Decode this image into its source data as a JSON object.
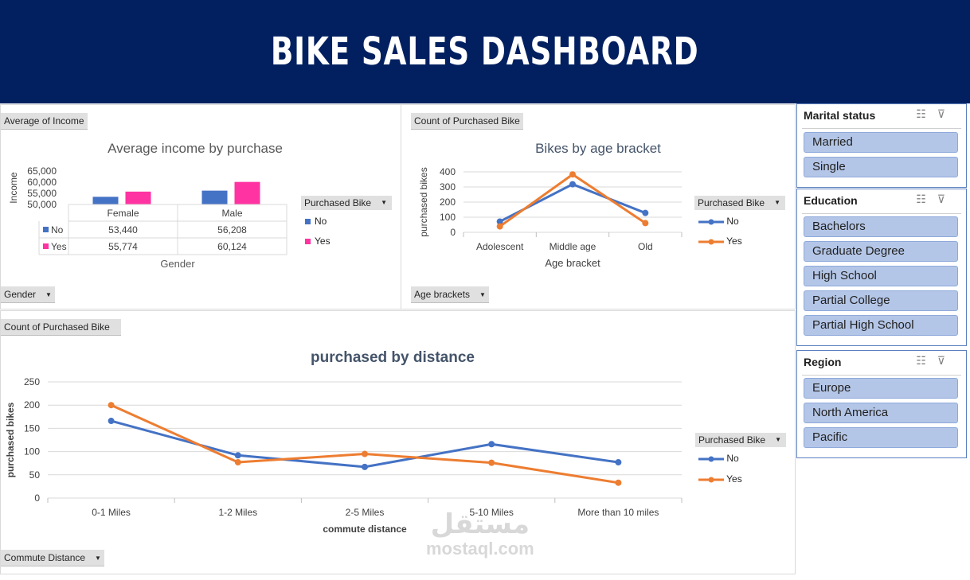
{
  "header": {
    "title": "BIKE SALES DASHBOARD"
  },
  "colors": {
    "banner": "#022060",
    "no": "#4472c4",
    "yes_income": "#ff33a1",
    "yes_line": "#ed7d31"
  },
  "income_panel": {
    "field_value": "Average of Income",
    "field_axis": "Gender",
    "legend_title": "Purchased Bike",
    "legend": [
      "No",
      "Yes"
    ],
    "table": {
      "columns": [
        "Female",
        "Male"
      ],
      "rows": [
        {
          "label": "No",
          "values": [
            "53,440",
            "56,208"
          ]
        },
        {
          "label": "Yes",
          "values": [
            "55,774",
            "60,124"
          ]
        }
      ]
    }
  },
  "age_panel": {
    "field_value": "Count of Purchased Bike",
    "field_axis": "Age brackets",
    "legend_title": "Purchased Bike",
    "legend": [
      "No",
      "Yes"
    ]
  },
  "distance_panel": {
    "field_value": "Count of Purchased Bike",
    "field_axis": "Commute Distance",
    "legend_title": "Purchased Bike",
    "legend": [
      "No",
      "Yes"
    ]
  },
  "chart_data": [
    {
      "id": "income",
      "type": "bar",
      "title": "Average income by purchase",
      "categories": [
        "Female",
        "Male"
      ],
      "xlabel": "Gender",
      "ylabel": "Income",
      "yticks": [
        "65,000",
        "60,000",
        "55,000",
        "50,000"
      ],
      "ylim": [
        50000,
        65000
      ],
      "series": [
        {
          "name": "No",
          "values": [
            53440,
            56208
          ]
        },
        {
          "name": "Yes",
          "values": [
            55774,
            60124
          ]
        }
      ]
    },
    {
      "id": "age",
      "type": "line",
      "title": "Bikes by age bracket",
      "categories": [
        "Adolescent",
        "Middle age",
        "Old"
      ],
      "xlabel": "Age bracket",
      "ylabel": "purchased bikes",
      "ylim": [
        0,
        400
      ],
      "yticks": [
        400,
        300,
        200,
        100,
        0
      ],
      "series": [
        {
          "name": "No",
          "values": [
            71,
            318,
            128
          ]
        },
        {
          "name": "Yes",
          "values": [
            39,
            383,
            61
          ]
        }
      ]
    },
    {
      "id": "distance",
      "type": "line",
      "title": "purchased by distance",
      "categories": [
        "0-1 Miles",
        "1-2 Miles",
        "2-5 Miles",
        "5-10 Miles",
        "More than 10 miles"
      ],
      "xlabel": "commute distance",
      "ylabel": "purchased bikes",
      "ylim": [
        0,
        250
      ],
      "yticks": [
        250,
        200,
        150,
        100,
        50,
        0
      ],
      "series": [
        {
          "name": "No",
          "values": [
            166,
            92,
            67,
            116,
            77
          ]
        },
        {
          "name": "Yes",
          "values": [
            200,
            77,
            95,
            76,
            33
          ]
        }
      ]
    }
  ],
  "slicers": [
    {
      "title": "Marital status",
      "items": [
        "Married",
        "Single"
      ]
    },
    {
      "title": "Education",
      "items": [
        "Bachelors",
        "Graduate Degree",
        "High School",
        "Partial College",
        "Partial High School"
      ]
    },
    {
      "title": "Region",
      "items": [
        "Europe",
        "North America",
        "Pacific"
      ]
    }
  ],
  "slicer_icons": [
    "multi-select-icon",
    "clear-filter-icon"
  ],
  "watermark": {
    "arabic": "مستقل",
    "latin": "mostaql.com"
  }
}
